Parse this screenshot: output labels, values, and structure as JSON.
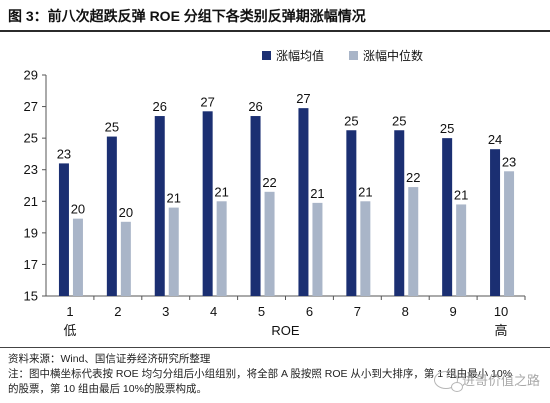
{
  "title": "图 3：前八次超跌反弹 ROE 分组下各类别反弹期涨幅情况",
  "notes": {
    "source": "资料来源：Wind、国信证券经济研究所整理",
    "note_line1": "注：图中横坐标代表按 ROE 均匀分组后小组组别，将全部 A 股按照 ROE 从小到大排序，第 1 组由最小 10%",
    "note_line2": "的股票，第 10 组由最后 10%的股票构成。"
  },
  "watermark": "进哥价值之路",
  "colors": {
    "series1": "#1b2f72",
    "series2": "#a9b5c8"
  },
  "chart_data": {
    "type": "bar",
    "categories": [
      "1",
      "2",
      "3",
      "4",
      "5",
      "6",
      "7",
      "8",
      "9",
      "10"
    ],
    "series": [
      {
        "name": "涨幅均值",
        "values": [
          23.4,
          25.1,
          26.4,
          26.7,
          26.4,
          26.9,
          25.5,
          25.5,
          25.0,
          24.3
        ]
      },
      {
        "name": "涨幅中位数",
        "values": [
          19.9,
          19.7,
          20.6,
          21.0,
          21.6,
          20.9,
          21.0,
          21.9,
          20.8,
          22.9
        ]
      }
    ],
    "data_labels": [
      [
        "23",
        "25",
        "26",
        "27",
        "26",
        "27",
        "25",
        "25",
        "25",
        "24"
      ],
      [
        "20",
        "20",
        "21",
        "21",
        "22",
        "21",
        "21",
        "22",
        "21",
        "23"
      ]
    ],
    "yticks": [
      15,
      17,
      19,
      21,
      23,
      25,
      27,
      29
    ],
    "ylim": [
      15,
      29
    ],
    "xlabel": "ROE",
    "x_low_label": "低",
    "x_high_label": "高",
    "legend_position": "top-right",
    "grid": false
  }
}
